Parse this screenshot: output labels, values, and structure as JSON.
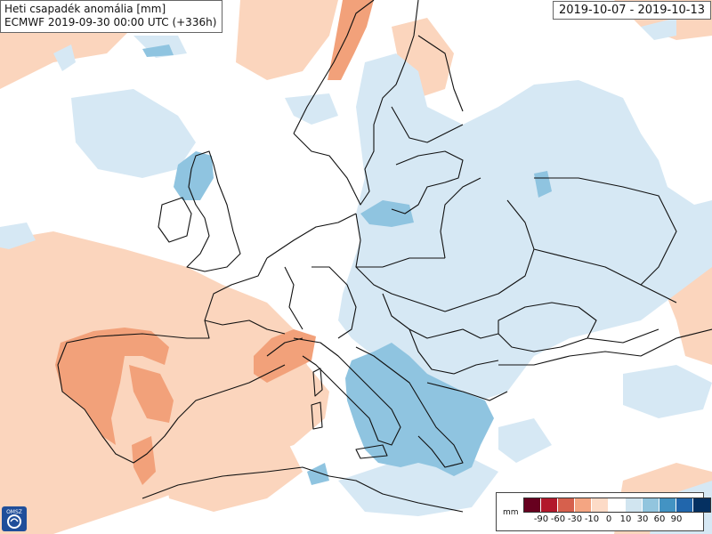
{
  "header": {
    "title": "Heti csapadék anomália [mm]",
    "model_run": "ECMWF 2019-09-30 00:00 UTC (+336h)",
    "period": "2019-10-07 - 2019-10-13"
  },
  "logo": {
    "text": "OMSZ",
    "icon": "omsz-logo-icon"
  },
  "legend": {
    "unit": "mm",
    "colors": [
      "#67001f",
      "#b2182b",
      "#d6604d",
      "#f4a582",
      "#fddbc7",
      "#ffffff",
      "#d1e5f0",
      "#92c5de",
      "#4393c3",
      "#2166ac",
      "#053061"
    ],
    "ticks": [
      "-90",
      "-60",
      "-30",
      "-10",
      "0",
      "10",
      "30",
      "60",
      "90"
    ]
  },
  "colors": {
    "dry_light": "#fbd5bd",
    "dry_medium": "#f2a17a",
    "wet_light": "#d6e8f4",
    "wet_medium": "#8fc4e0",
    "border_lines": "#111111"
  }
}
